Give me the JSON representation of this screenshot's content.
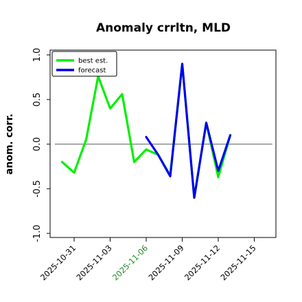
{
  "chart_data": {
    "type": "line",
    "title": "Anomaly crrltn, MLD",
    "xlabel": "",
    "ylabel": "anom. corr.",
    "ylim": [
      -1.0,
      1.0
    ],
    "yticks": [
      "-1.0",
      "-0.5",
      "0.0",
      "0.5",
      "1.0"
    ],
    "xticks": [
      {
        "label": "2025-10-31",
        "value": 0,
        "color": "#000000"
      },
      {
        "label": "2025-11-03",
        "value": 3,
        "color": "#000000"
      },
      {
        "label": "2025-11-06",
        "value": 6,
        "color": "#228b22"
      },
      {
        "label": "2025-11-09",
        "value": 9,
        "color": "#000000"
      },
      {
        "label": "2025-11-12",
        "value": 12,
        "color": "#000000"
      },
      {
        "label": "2025-11-15",
        "value": 15,
        "color": "#000000"
      }
    ],
    "x_range": [
      -2,
      16.8
    ],
    "reference_line": 0.0,
    "legend_position": "upper-left",
    "series": [
      {
        "name": "best est.",
        "color": "#00ee00",
        "x": [
          -1,
          0,
          1,
          2,
          3,
          4,
          5,
          6,
          7,
          8,
          9,
          10,
          11,
          12,
          13
        ],
        "values": [
          -0.2,
          -0.32,
          0.05,
          0.76,
          0.4,
          0.56,
          -0.2,
          -0.06,
          -0.12,
          -0.35,
          0.9,
          -0.6,
          0.24,
          -0.37,
          0.1
        ]
      },
      {
        "name": "forecast",
        "color": "#0000ee",
        "x": [
          6,
          7,
          8,
          9,
          10,
          11,
          12,
          13
        ],
        "values": [
          0.08,
          -0.12,
          -0.36,
          0.9,
          -0.6,
          0.24,
          -0.3,
          0.1
        ]
      }
    ]
  }
}
